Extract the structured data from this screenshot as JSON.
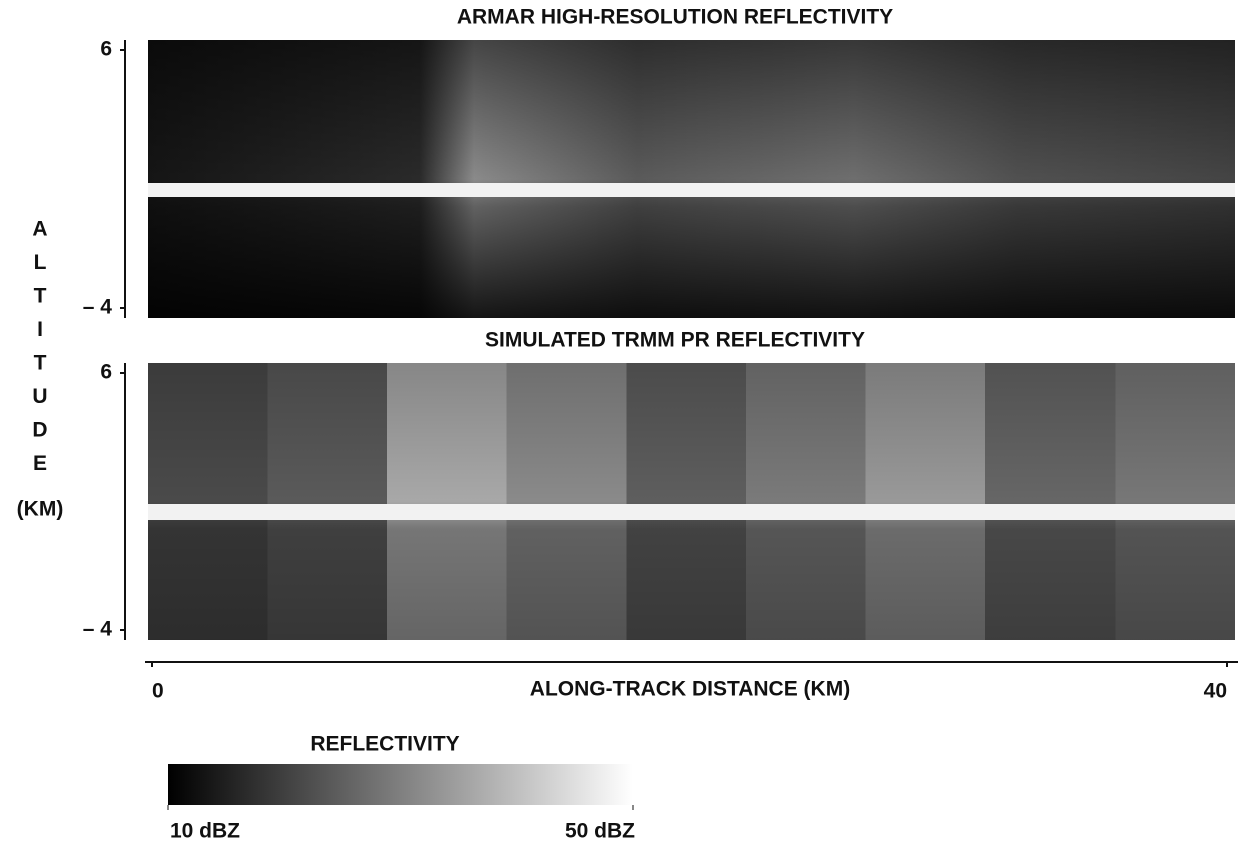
{
  "figure": {
    "panels": [
      {
        "title": "ARMAR HIGH-RESOLUTION REFLECTIVITY",
        "ylim": [
          -4,
          6
        ],
        "yticks": [
          6,
          {
            "value": -4,
            "label": "– 4"
          }
        ]
      },
      {
        "title": "SIMULATED TRMM PR REFLECTIVITY",
        "ylim": [
          -4,
          6
        ],
        "yticks": [
          6,
          {
            "value": -4,
            "label": "– 4"
          }
        ]
      }
    ],
    "y_label": [
      "A",
      "L",
      "T",
      "I",
      "T",
      "U",
      "D",
      "E"
    ],
    "y_unit": "(KM)",
    "x_label": "ALONG-TRACK DISTANCE (KM)",
    "xlim": [
      0,
      40
    ],
    "xticks": [
      0,
      40
    ],
    "colorbar": {
      "title": "REFLECTIVITY",
      "range": [
        10,
        50
      ],
      "ticks": [
        {
          "value": 10,
          "label": "10 dBZ"
        },
        {
          "value": 50,
          "label": "50 dBZ"
        }
      ]
    }
  }
}
